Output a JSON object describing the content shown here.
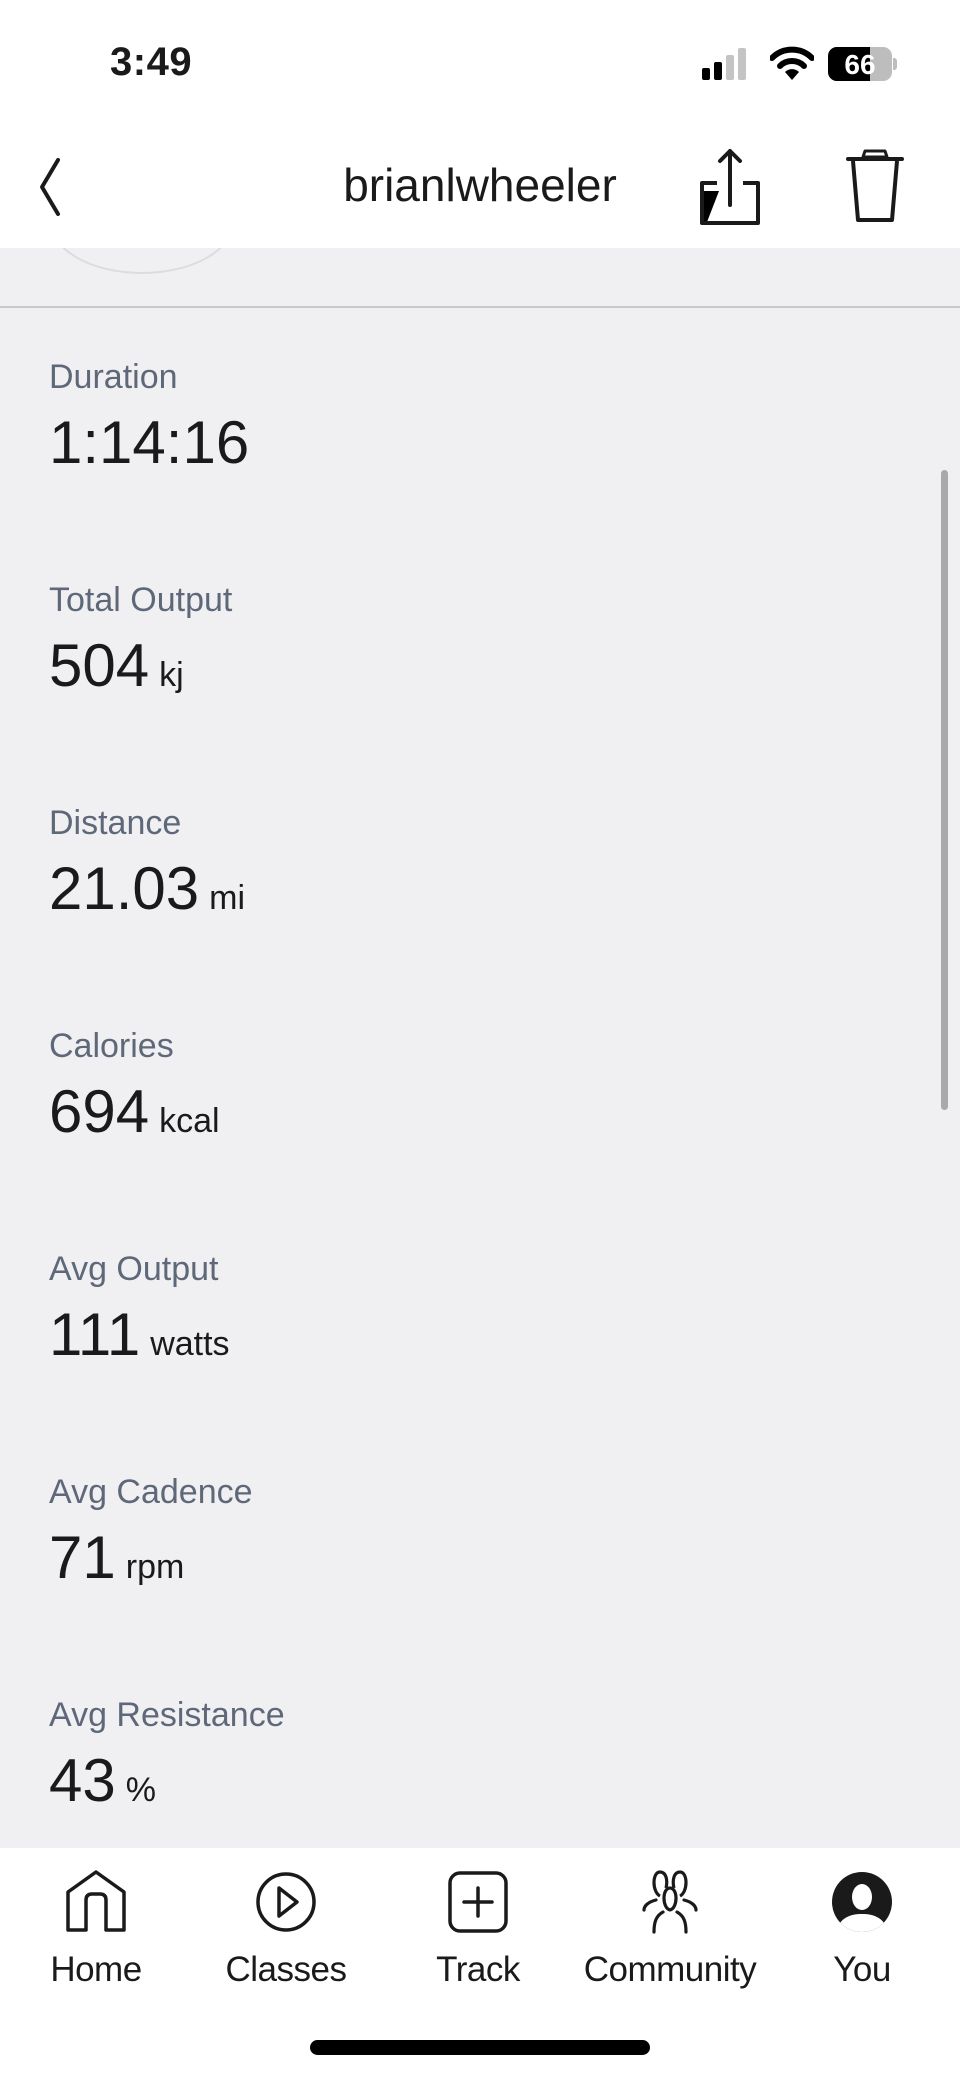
{
  "status_bar": {
    "time": "3:49",
    "battery": "66",
    "battery_level": 0.66,
    "icons": [
      "cellular-signal-icon",
      "wifi-icon",
      "battery-icon"
    ]
  },
  "header": {
    "title": "brianlwheeler",
    "icons": [
      "chevron-left-icon",
      "share-icon",
      "trash-icon"
    ]
  },
  "metrics": [
    {
      "label": "Duration",
      "value": "1:14:16",
      "unit": ""
    },
    {
      "label": "Total Output",
      "value": "504",
      "unit": "kj"
    },
    {
      "label": "Distance",
      "value": "21.03",
      "unit": "mi"
    },
    {
      "label": "Calories",
      "value": "694",
      "unit": "kcal"
    },
    {
      "label": "Avg Output",
      "value": "111",
      "unit": "watts"
    },
    {
      "label": "Avg Cadence",
      "value": "71",
      "unit": "rpm"
    },
    {
      "label": "Avg Resistance",
      "value": "43",
      "unit": "%"
    }
  ],
  "tabbar": {
    "items": [
      {
        "label": "Home",
        "icon": "home-icon"
      },
      {
        "label": "Classes",
        "icon": "play-circle-icon"
      },
      {
        "label": "Track",
        "icon": "plus-square-icon"
      },
      {
        "label": "Community",
        "icon": "community-icon"
      },
      {
        "label": "You",
        "icon": "avatar-icon"
      }
    ]
  }
}
